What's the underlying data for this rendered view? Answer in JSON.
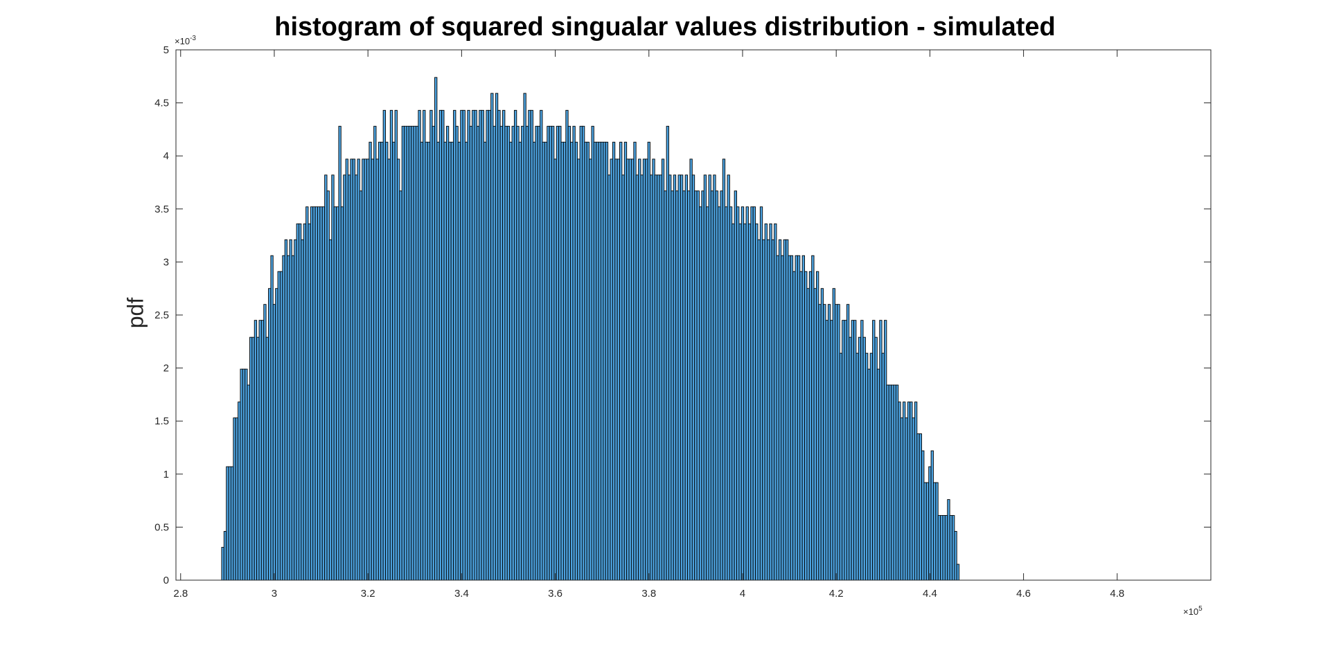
{
  "chart_data": {
    "type": "bar",
    "title": "histogram of squared singualar values distribution - simulated",
    "xlabel": "",
    "ylabel": "pdf",
    "x_exponent_label": "×10",
    "x_exponent_power": "5",
    "y_exponent_label": "×10",
    "y_exponent_power": "-3",
    "x_scale": 100000,
    "y_scale": 0.001,
    "xlim": [
      2.79,
      5.0
    ],
    "ylim": [
      0,
      5
    ],
    "x_ticks": [
      2.8,
      3,
      3.2,
      3.4,
      3.6,
      3.8,
      4,
      4.2,
      4.4,
      4.6,
      4.8
    ],
    "x_tick_labels": [
      "2.8",
      "3",
      "3.2",
      "3.4",
      "3.6",
      "3.8",
      "4",
      "4.2",
      "4.4",
      "4.6",
      "4.8"
    ],
    "y_ticks": [
      0,
      0.5,
      1,
      1.5,
      2,
      2.5,
      3,
      3.5,
      4,
      4.5,
      5
    ],
    "y_tick_labels": [
      "0",
      "0.5",
      "1",
      "1.5",
      "2",
      "2.5",
      "3",
      "3.5",
      "4",
      "4.5",
      "5"
    ],
    "grid": false,
    "bar_color": "#4DA3E0",
    "edge_color": "#000000",
    "bin_start": 2.8875,
    "bin_width": 0.005,
    "values": [
      0.31,
      0.46,
      1.07,
      1.07,
      1.07,
      1.53,
      1.53,
      1.68,
      1.99,
      1.99,
      1.99,
      1.84,
      2.29,
      2.29,
      2.45,
      2.29,
      2.45,
      2.45,
      2.6,
      2.29,
      2.75,
      3.06,
      2.6,
      2.75,
      2.91,
      2.91,
      3.06,
      3.21,
      3.06,
      3.21,
      3.06,
      3.21,
      3.36,
      3.36,
      3.21,
      3.36,
      3.52,
      3.36,
      3.52,
      3.52,
      3.52,
      3.52,
      3.52,
      3.52,
      3.82,
      3.67,
      3.21,
      3.82,
      3.52,
      3.52,
      4.28,
      3.52,
      3.82,
      3.97,
      3.82,
      3.97,
      3.97,
      3.82,
      3.97,
      3.67,
      3.97,
      3.97,
      3.97,
      4.13,
      3.97,
      4.28,
      3.97,
      4.13,
      4.13,
      4.43,
      4.13,
      3.97,
      4.43,
      4.13,
      4.43,
      3.97,
      3.67,
      4.28,
      4.28,
      4.28,
      4.28,
      4.28,
      4.28,
      4.28,
      4.43,
      4.13,
      4.43,
      4.13,
      4.13,
      4.43,
      4.28,
      4.74,
      4.13,
      4.43,
      4.43,
      4.13,
      4.28,
      4.13,
      4.13,
      4.43,
      4.28,
      4.13,
      4.43,
      4.43,
      4.13,
      4.43,
      4.28,
      4.43,
      4.43,
      4.28,
      4.43,
      4.43,
      4.13,
      4.43,
      4.43,
      4.59,
      4.28,
      4.59,
      4.43,
      4.28,
      4.43,
      4.28,
      4.28,
      4.13,
      4.28,
      4.43,
      4.28,
      4.13,
      4.28,
      4.59,
      4.28,
      4.43,
      4.43,
      4.13,
      4.28,
      4.28,
      4.43,
      4.13,
      4.13,
      4.28,
      4.28,
      4.28,
      3.97,
      4.28,
      4.28,
      4.13,
      4.13,
      4.43,
      4.28,
      4.13,
      4.28,
      4.13,
      3.97,
      4.28,
      4.28,
      4.13,
      4.13,
      3.97,
      4.28,
      4.13,
      4.13,
      4.13,
      4.13,
      4.13,
      4.13,
      3.82,
      3.97,
      4.13,
      3.97,
      3.97,
      4.13,
      3.82,
      4.13,
      3.97,
      3.97,
      3.97,
      4.13,
      3.82,
      3.97,
      3.82,
      3.97,
      3.97,
      4.13,
      3.82,
      3.97,
      3.82,
      3.82,
      3.82,
      3.97,
      3.67,
      4.28,
      3.82,
      3.67,
      3.82,
      3.67,
      3.82,
      3.82,
      3.67,
      3.82,
      3.67,
      3.97,
      3.82,
      3.67,
      3.67,
      3.52,
      3.67,
      3.82,
      3.52,
      3.82,
      3.67,
      3.82,
      3.67,
      3.52,
      3.67,
      3.97,
      3.52,
      3.82,
      3.52,
      3.36,
      3.67,
      3.52,
      3.36,
      3.52,
      3.36,
      3.52,
      3.36,
      3.52,
      3.52,
      3.36,
      3.21,
      3.52,
      3.21,
      3.36,
      3.21,
      3.36,
      3.21,
      3.36,
      3.06,
      3.21,
      3.06,
      3.21,
      3.21,
      3.06,
      3.06,
      2.91,
      3.06,
      3.06,
      2.91,
      3.06,
      2.91,
      2.75,
      2.91,
      3.06,
      2.75,
      2.91,
      2.6,
      2.75,
      2.6,
      2.45,
      2.6,
      2.45,
      2.75,
      2.6,
      2.6,
      2.14,
      2.45,
      2.45,
      2.6,
      2.29,
      2.45,
      2.45,
      2.14,
      2.29,
      2.45,
      2.29,
      2.14,
      1.99,
      2.14,
      2.45,
      2.29,
      1.99,
      2.45,
      2.14,
      2.45,
      1.84,
      1.84,
      1.84,
      1.84,
      1.84,
      1.68,
      1.53,
      1.68,
      1.53,
      1.68,
      1.68,
      1.53,
      1.68,
      1.38,
      1.38,
      1.22,
      0.92,
      0.92,
      1.07,
      1.22,
      0.92,
      0.92,
      0.61,
      0.61,
      0.61,
      0.61,
      0.76,
      0.61,
      0.61,
      0.46,
      0.15
    ]
  }
}
